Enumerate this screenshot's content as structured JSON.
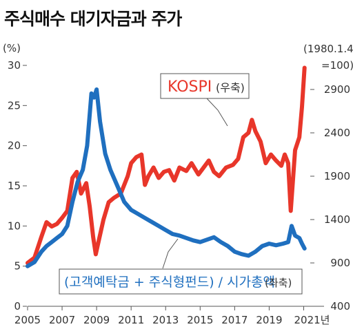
{
  "chart_data": {
    "type": "line",
    "title": "주식매수 대기자금과 주가",
    "left_axis": {
      "unit": "(%)",
      "ticks": [
        "0",
        "5",
        "10",
        "15",
        "20",
        "25",
        "30"
      ],
      "ylim": [
        0,
        30
      ]
    },
    "right_axis": {
      "unit_line1": "(1980.1.4",
      "unit_line2": "=100)",
      "ticks": [
        "400",
        "900",
        "1400",
        "1900",
        "2400",
        "2900"
      ],
      "ylim": [
        400,
        2900
      ]
    },
    "x_ticks": [
      "2005",
      "2007",
      "2009",
      "2011",
      "2013",
      "2015",
      "2017",
      "2019",
      "2021년"
    ],
    "xlim": [
      2005,
      2021.3
    ],
    "series": [
      {
        "name": "KOSPI",
        "axis_note": "(우축)",
        "axis": "right",
        "color": "#e8362a",
        "points": [
          [
            2005.0,
            900
          ],
          [
            2005.4,
            960
          ],
          [
            2005.8,
            1200
          ],
          [
            2006.1,
            1370
          ],
          [
            2006.4,
            1320
          ],
          [
            2006.7,
            1350
          ],
          [
            2007.0,
            1420
          ],
          [
            2007.3,
            1500
          ],
          [
            2007.6,
            1880
          ],
          [
            2007.85,
            1950
          ],
          [
            2008.1,
            1700
          ],
          [
            2008.4,
            1820
          ],
          [
            2008.6,
            1550
          ],
          [
            2008.8,
            1200
          ],
          [
            2008.95,
            1000
          ],
          [
            2009.15,
            1180
          ],
          [
            2009.4,
            1400
          ],
          [
            2009.7,
            1600
          ],
          [
            2010.0,
            1650
          ],
          [
            2010.4,
            1700
          ],
          [
            2010.8,
            1900
          ],
          [
            2011.0,
            2050
          ],
          [
            2011.3,
            2120
          ],
          [
            2011.6,
            2150
          ],
          [
            2011.8,
            1800
          ],
          [
            2012.0,
            1900
          ],
          [
            2012.3,
            2000
          ],
          [
            2012.6,
            1880
          ],
          [
            2012.9,
            1950
          ],
          [
            2013.2,
            1970
          ],
          [
            2013.5,
            1850
          ],
          [
            2013.8,
            2000
          ],
          [
            2014.2,
            1960
          ],
          [
            2014.5,
            2050
          ],
          [
            2014.9,
            1920
          ],
          [
            2015.2,
            2000
          ],
          [
            2015.5,
            2080
          ],
          [
            2015.8,
            1950
          ],
          [
            2016.1,
            1900
          ],
          [
            2016.5,
            2000
          ],
          [
            2016.9,
            2030
          ],
          [
            2017.2,
            2100
          ],
          [
            2017.5,
            2350
          ],
          [
            2017.8,
            2400
          ],
          [
            2018.0,
            2550
          ],
          [
            2018.2,
            2420
          ],
          [
            2018.5,
            2300
          ],
          [
            2018.8,
            2050
          ],
          [
            2019.1,
            2150
          ],
          [
            2019.4,
            2080
          ],
          [
            2019.7,
            2020
          ],
          [
            2019.9,
            2150
          ],
          [
            2020.1,
            2050
          ],
          [
            2020.25,
            1500
          ],
          [
            2020.5,
            2200
          ],
          [
            2020.75,
            2350
          ],
          [
            2020.9,
            2700
          ],
          [
            2021.05,
            3150
          ]
        ]
      },
      {
        "name": "(고객예탁금 + 주식형펀드) / 시가총액",
        "axis_note": "(좌축)",
        "axis": "left",
        "color": "#1f6fbf",
        "points": [
          [
            2005.0,
            5.0
          ],
          [
            2005.4,
            5.5
          ],
          [
            2005.8,
            6.8
          ],
          [
            2006.1,
            7.5
          ],
          [
            2006.4,
            8.0
          ],
          [
            2006.7,
            8.5
          ],
          [
            2007.0,
            9.0
          ],
          [
            2007.3,
            10.0
          ],
          [
            2007.6,
            13.0
          ],
          [
            2007.9,
            15.5
          ],
          [
            2008.2,
            17.0
          ],
          [
            2008.45,
            20.0
          ],
          [
            2008.7,
            26.5
          ],
          [
            2008.85,
            26.0
          ],
          [
            2009.0,
            27.0
          ],
          [
            2009.2,
            23.0
          ],
          [
            2009.5,
            19.0
          ],
          [
            2009.8,
            17.0
          ],
          [
            2010.2,
            15.0
          ],
          [
            2010.6,
            13.0
          ],
          [
            2011.0,
            12.0
          ],
          [
            2011.4,
            11.5
          ],
          [
            2011.8,
            11.0
          ],
          [
            2012.2,
            10.5
          ],
          [
            2012.6,
            10.0
          ],
          [
            2013.0,
            9.5
          ],
          [
            2013.4,
            9.0
          ],
          [
            2013.8,
            8.8
          ],
          [
            2014.2,
            8.5
          ],
          [
            2014.6,
            8.2
          ],
          [
            2015.0,
            8.0
          ],
          [
            2015.4,
            8.3
          ],
          [
            2015.8,
            8.6
          ],
          [
            2016.2,
            8.0
          ],
          [
            2016.6,
            7.5
          ],
          [
            2017.0,
            6.8
          ],
          [
            2017.4,
            6.5
          ],
          [
            2017.8,
            6.3
          ],
          [
            2018.2,
            6.8
          ],
          [
            2018.6,
            7.5
          ],
          [
            2019.0,
            7.8
          ],
          [
            2019.4,
            7.6
          ],
          [
            2019.8,
            7.8
          ],
          [
            2020.1,
            8.0
          ],
          [
            2020.3,
            10.0
          ],
          [
            2020.5,
            8.8
          ],
          [
            2020.75,
            8.5
          ],
          [
            2020.9,
            7.8
          ],
          [
            2021.05,
            7.2
          ]
        ]
      }
    ],
    "legend": {
      "kospi_label": "KOSPI",
      "kospi_axis": "(우축)",
      "ratio_label": "(고객예탁금 + 주식형펀드) / 시가총액",
      "ratio_axis": "(좌축)"
    },
    "grid": false
  }
}
